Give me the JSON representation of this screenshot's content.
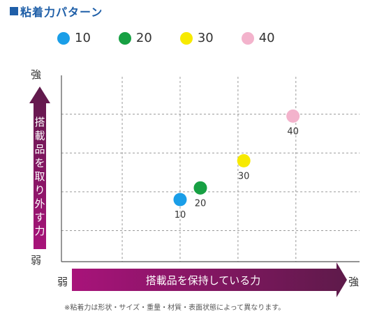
{
  "title": "粘着力パターン",
  "chart_data": {
    "type": "scatter",
    "series": [
      {
        "name": "10",
        "x": 1.0,
        "y": 0.8,
        "color": "#1a9ee8",
        "label": "10"
      },
      {
        "name": "20",
        "x": 1.35,
        "y": 1.1,
        "color": "#17a043",
        "label": "20"
      },
      {
        "name": "30",
        "x": 2.1,
        "y": 1.8,
        "color": "#f7ea00",
        "label": "30"
      },
      {
        "name": "40",
        "x": 2.95,
        "y": 2.95,
        "color": "#f3b3cc",
        "label": "40"
      }
    ],
    "xlim": [
      -1.05,
      4.1
    ],
    "ylim": [
      -0.8,
      4.0
    ],
    "grid": true,
    "legend_position": "top",
    "xlabel": "搭載品を保持している力",
    "ylabel": "搭載品を取り外す力",
    "x_low": "弱",
    "x_high": "強",
    "y_low": "弱",
    "y_high": "強"
  },
  "footnote": "※粘着力は形状・サイズ・重量・材質・表面状態によって異なります。",
  "colors": {
    "title": "#1f5fa8",
    "arrow_dark": "#5e1a4a",
    "arrow_bright": "#a8137a",
    "grid": "#9a9a9a"
  }
}
